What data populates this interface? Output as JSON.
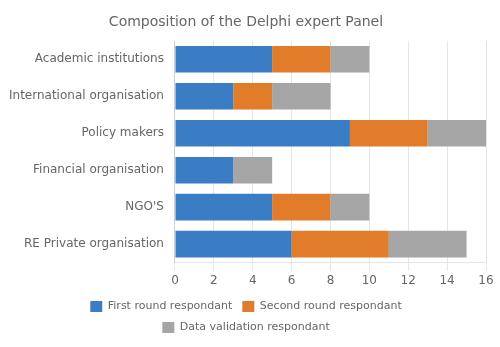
{
  "chart_data": {
    "type": "bar",
    "orientation": "horizontal",
    "stacked": true,
    "title": "Composition of the Delphi expert Panel",
    "categories": [
      "RE Private organisation",
      "NGO'S",
      "Financial organisation",
      "Policy makers",
      "International organisation",
      "Academic institutions"
    ],
    "series": [
      {
        "name": "First round respondant",
        "color": "#3B7DC4",
        "values": [
          6,
          5,
          3,
          9,
          3,
          5
        ]
      },
      {
        "name": "Second round respondant",
        "color": "#E07C2A",
        "values": [
          5,
          3,
          0,
          4,
          2,
          3
        ]
      },
      {
        "name": "Data validation respondant",
        "color": "#A5A5A5",
        "values": [
          4,
          2,
          2,
          3,
          3,
          2
        ]
      }
    ],
    "xlim": [
      0,
      16
    ],
    "xticks": [
      0,
      2,
      4,
      6,
      8,
      10,
      12,
      14,
      16
    ],
    "grid": true,
    "legend": "bottom"
  }
}
